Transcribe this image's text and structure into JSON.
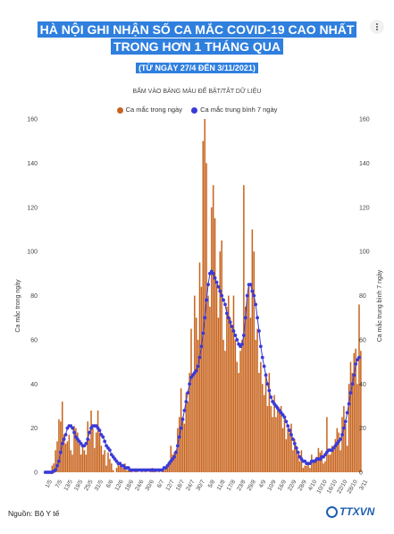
{
  "title_line1": "HÀ NỘI GHI NHẬN SỐ CA MẮC COVID-19 CAO NHẤT",
  "title_line2": "TRONG HƠN 1 THÁNG QUA",
  "subtitle": "(TỪ NGÀY 27/4 ĐẾN 3/11/2021)",
  "hint": "BẤM VÀO BẢNG MÀU ĐỂ BẬT/TẮT DỮ LIỆU",
  "source": "Nguồn: Bộ Y tế",
  "logo": "TTXVN",
  "chart_data": {
    "type": "bar",
    "ylabel_left": "Ca mắc trong ngày",
    "ylabel_right": "Ca mắc trung bình 7 ngày",
    "ylim": [
      0,
      160
    ],
    "yticks": [
      0,
      20,
      40,
      60,
      80,
      100,
      120,
      140,
      160
    ],
    "xtick_labels": [
      "1/5",
      "7/5",
      "13/5",
      "19/5",
      "25/5",
      "31/5",
      "6/6",
      "12/6",
      "18/6",
      "24/6",
      "30/6",
      "6/7",
      "12/7",
      "18/7",
      "24/7",
      "30/7",
      "5/8",
      "11/8",
      "17/8",
      "23/8",
      "29/8",
      "4/9",
      "10/9",
      "16/9",
      "22/9",
      "28/9",
      "4/10",
      "10/10",
      "16/10",
      "22/10",
      "28/10",
      "3/11"
    ],
    "grid": false,
    "legend_position": "top",
    "colors": {
      "daily": "#c8641e",
      "avg": "#3a3ad8"
    },
    "series": [
      {
        "name": "Ca mắc trong ngày",
        "type": "bar",
        "values": [
          0,
          0,
          0,
          0,
          3,
          4,
          10,
          14,
          24,
          23,
          32,
          17,
          13,
          14,
          17,
          10,
          8,
          21,
          20,
          18,
          13,
          8,
          12,
          10,
          8,
          23,
          15,
          28,
          20,
          11,
          18,
          28,
          18,
          12,
          8,
          10,
          3,
          9,
          6,
          4,
          1,
          0,
          2,
          4,
          3,
          3,
          2,
          4,
          1,
          1,
          1,
          1,
          0,
          1,
          1,
          0,
          0,
          1,
          0,
          1,
          0,
          0,
          1,
          2,
          1,
          1,
          0,
          1,
          0,
          1,
          1,
          2,
          3,
          5,
          12,
          8,
          9,
          10,
          20,
          25,
          38,
          25,
          22,
          36,
          32,
          45,
          65,
          45,
          80,
          70,
          60,
          95,
          84,
          150,
          160,
          140,
          80,
          75,
          120,
          130,
          115,
          85,
          70,
          100,
          105,
          60,
          55,
          75,
          80,
          70,
          65,
          80,
          60,
          50,
          45,
          55,
          60,
          130,
          75,
          80,
          85,
          70,
          110,
          100,
          60,
          65,
          45,
          50,
          40,
          35,
          45,
          30,
          45,
          30,
          25,
          35,
          25,
          30,
          28,
          30,
          20,
          25,
          15,
          20,
          18,
          22,
          10,
          15,
          12,
          8,
          5,
          10,
          2,
          3,
          3,
          4,
          2,
          8,
          5,
          6,
          7,
          11,
          9,
          10,
          4,
          5,
          25,
          8,
          8,
          12,
          10,
          15,
          20,
          18,
          10,
          25,
          30,
          22,
          12,
          40,
          50,
          45,
          54,
          56,
          40,
          76,
          55
        ]
      },
      {
        "name": "Ca mắc trung bình 7 ngày",
        "type": "line",
        "values": [
          0,
          0,
          0,
          0,
          0,
          0.5,
          1.1,
          3,
          5,
          9,
          13,
          15,
          17,
          20,
          21,
          21,
          20,
          18,
          16,
          15,
          14,
          13,
          12,
          12,
          13,
          15,
          18,
          20,
          21,
          21,
          21,
          20,
          19,
          17,
          16,
          14,
          12,
          11,
          10,
          8,
          7,
          6,
          5,
          4,
          4,
          3,
          3,
          2,
          2,
          2,
          1,
          1,
          1,
          1,
          1,
          1,
          1,
          1,
          1,
          1,
          1,
          1,
          1,
          1,
          1,
          1,
          1,
          1,
          1,
          1,
          2,
          2,
          3,
          4,
          5,
          6,
          7,
          9,
          12,
          16,
          20,
          24,
          28,
          32,
          36,
          40,
          43,
          44,
          45,
          46,
          48,
          52,
          57,
          63,
          70,
          78,
          85,
          90,
          91,
          90,
          88,
          86,
          84,
          82,
          80,
          78,
          76,
          72,
          70,
          68,
          66,
          64,
          62,
          60,
          58,
          57,
          58,
          62,
          70,
          80,
          85,
          85,
          82,
          80,
          76,
          70,
          64,
          57,
          52,
          48,
          44,
          40,
          37,
          34,
          32,
          31,
          30,
          29,
          28,
          27,
          26,
          25,
          23,
          21,
          19,
          17,
          15,
          13,
          11,
          9,
          7,
          6,
          5,
          5,
          4,
          4,
          4,
          5,
          5,
          5,
          6,
          6,
          6,
          7,
          7,
          8,
          9,
          10,
          10,
          10,
          11,
          12,
          13,
          14,
          15,
          17,
          20,
          23,
          27,
          31,
          36,
          40,
          44,
          49,
          51,
          52
        ]
      }
    ]
  }
}
